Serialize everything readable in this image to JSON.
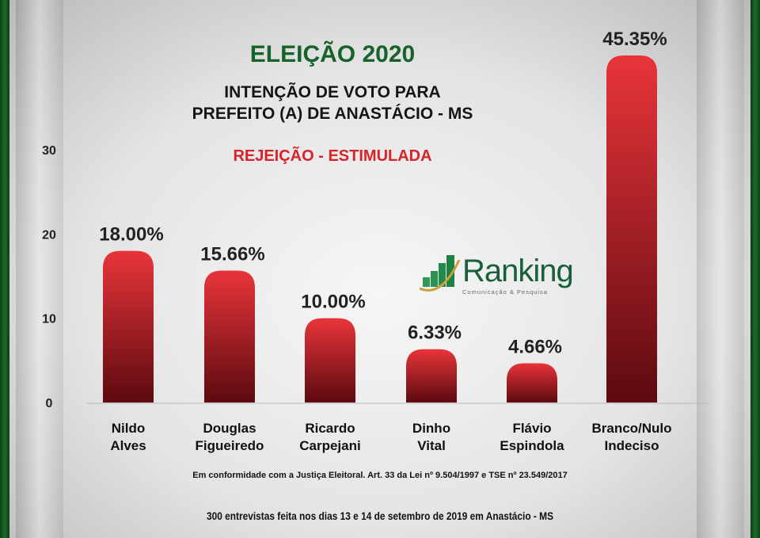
{
  "header": {
    "title": "ELEIÇÃO 2020",
    "subtitle_line1": "INTENÇÃO DE VOTO PARA",
    "subtitle_line2": "PREFEITO (A) DE ANASTÁCIO - MS",
    "subtitle_red": "REJEIÇÃO - ESTIMULADA"
  },
  "logo": {
    "name": "Ranking",
    "tagline": "Comunicação & Pesquisa"
  },
  "footer": {
    "note1": "Em conformidade com a Justiça Eleitoral. Art. 33 da Lei nº 9.504/1997 e TSE nº 23.549/2017",
    "note2": "300 entrevistas feita nos dias 13 e 14 de setembro de 2019 em Anastácio - MS"
  },
  "chart_data": {
    "type": "bar",
    "categories": [
      [
        "Nildo",
        "Alves"
      ],
      [
        "Douglas",
        "Figueiredo"
      ],
      [
        "Ricardo",
        "Carpejani"
      ],
      [
        "Dinho",
        "Vital"
      ],
      [
        "Flávio",
        "Espindola"
      ],
      [
        "Branco/Nulo",
        "Indeciso"
      ]
    ],
    "values": [
      18.0,
      15.66,
      10.0,
      6.33,
      4.66,
      45.35
    ],
    "data_labels": [
      "18.00%",
      "15.66%",
      "10.00%",
      "6.33%",
      "4.66%",
      "45.35%"
    ],
    "yticks": [
      0,
      10,
      20,
      30
    ],
    "ylim": [
      0,
      30
    ],
    "grid": false,
    "bar_color_top": "#e8353a",
    "bar_color_bottom": "#5c0a10",
    "title_color": "#17622b",
    "accent_color": "#d8232a"
  }
}
